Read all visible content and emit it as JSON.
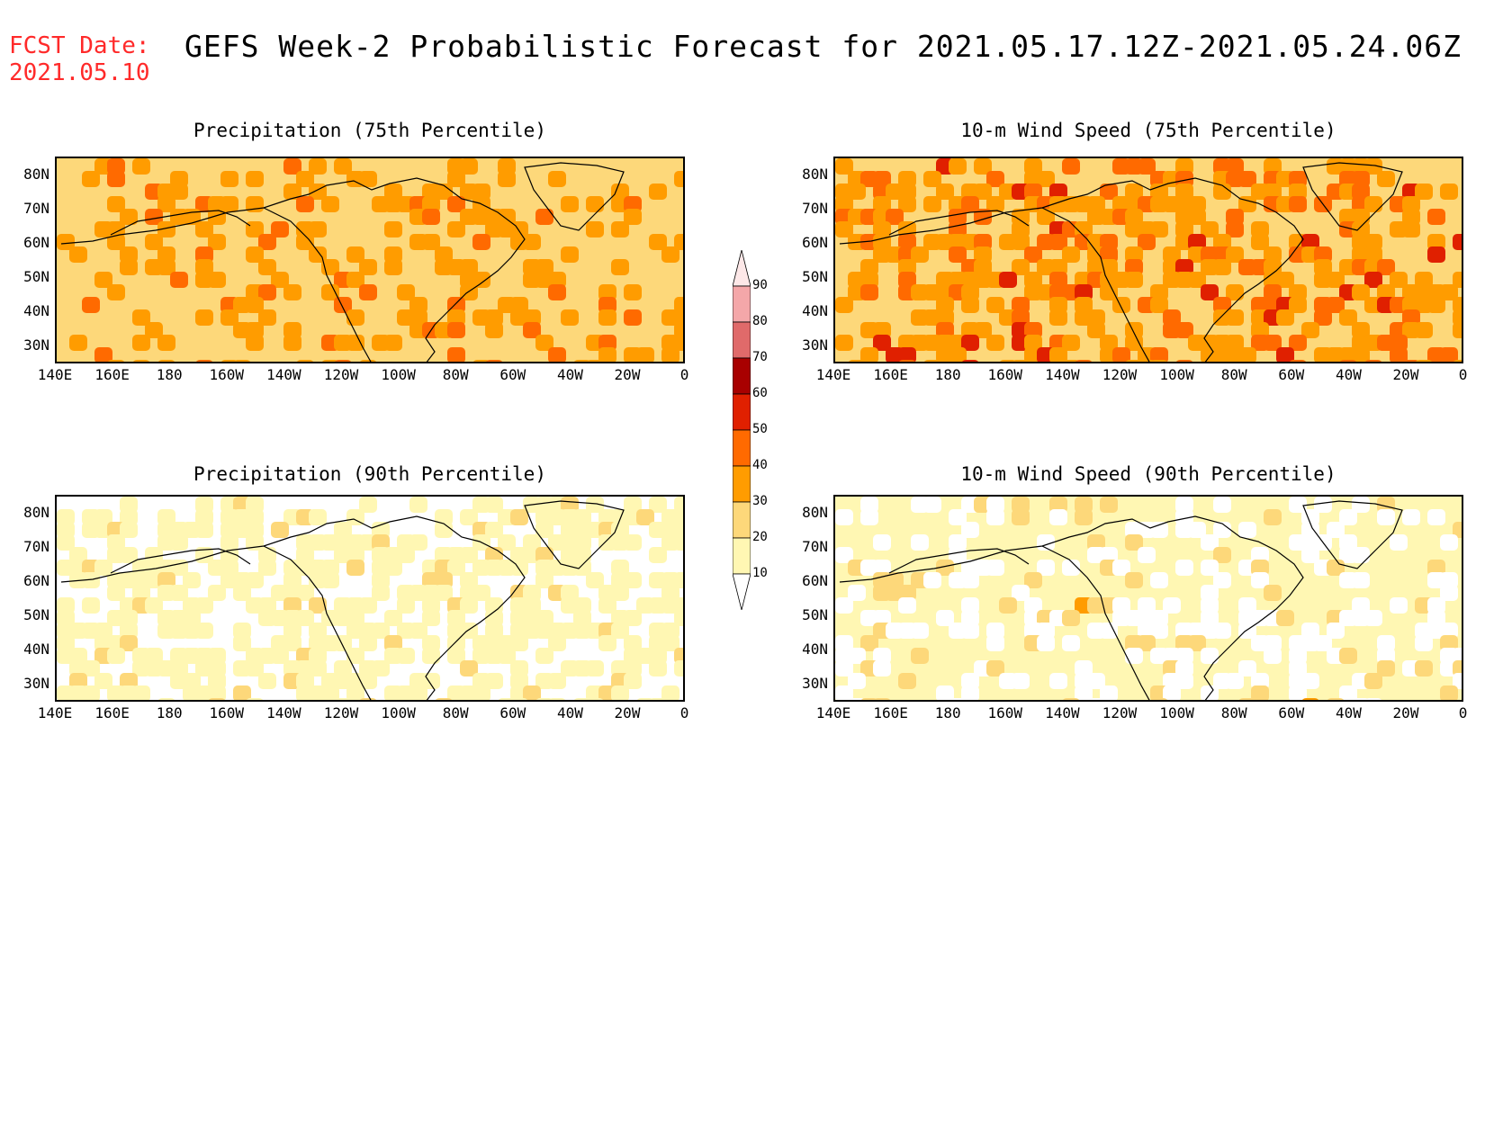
{
  "header": {
    "fcst_label": "FCST Date:",
    "fcst_date": "2021.05.10",
    "title": "GEFS Week-2 Probabilistic Forecast for 2021.05.17.12Z-2021.05.24.06Z"
  },
  "panels": [
    {
      "title": "Precipitation (75th Percentile)"
    },
    {
      "title": "10-m Wind Speed (75th Percentile)"
    },
    {
      "title": "Precipitation (90th Percentile)"
    },
    {
      "title": "10-m Wind Speed (90th Percentile)"
    }
  ],
  "axes": {
    "lat_labels": [
      "80N",
      "70N",
      "60N",
      "50N",
      "40N",
      "30N"
    ],
    "lon_labels": [
      "140E",
      "160E",
      "180",
      "160W",
      "140W",
      "120W",
      "100W",
      "80W",
      "60W",
      "40W",
      "20W",
      "0"
    ]
  },
  "colorbar": {
    "labels": [
      "90",
      "80",
      "70",
      "60",
      "50",
      "40",
      "30",
      "20",
      "10"
    ],
    "colors": [
      "#fde8e8",
      "#f4a7a9",
      "#e06a6a",
      "#a80000",
      "#e02000",
      "#ff6a00",
      "#ff9c00",
      "#fdd87a",
      "#fff7b3"
    ]
  }
}
